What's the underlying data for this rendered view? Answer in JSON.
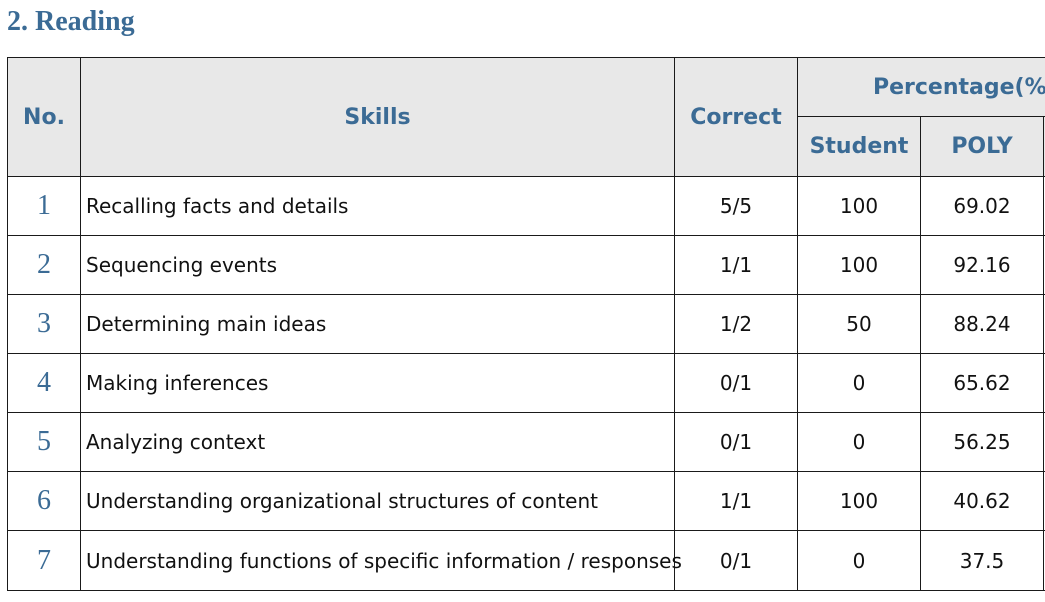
{
  "section": {
    "title": "2. Reading"
  },
  "table": {
    "headers": {
      "no": "No.",
      "skills": "Skills",
      "correct": "Correct",
      "percentage": "Percentage(%",
      "student": "Student",
      "poly": "POLY"
    },
    "rows": [
      {
        "no": "1",
        "skill": "Recalling facts and details",
        "correct": "5/5",
        "student": "100",
        "poly": "69.02"
      },
      {
        "no": "2",
        "skill": "Sequencing events",
        "correct": "1/1",
        "student": "100",
        "poly": "92.16"
      },
      {
        "no": "3",
        "skill": "Determining main ideas",
        "correct": "1/2",
        "student": "50",
        "poly": "88.24"
      },
      {
        "no": "4",
        "skill": "Making inferences",
        "correct": "0/1",
        "student": "0",
        "poly": "65.62"
      },
      {
        "no": "5",
        "skill": "Analyzing context",
        "correct": "0/1",
        "student": "0",
        "poly": "56.25"
      },
      {
        "no": "6",
        "skill": "Understanding organizational structures of content",
        "correct": "1/1",
        "student": "100",
        "poly": "40.62"
      },
      {
        "no": "7",
        "skill": "Understanding functions of specific information / responses",
        "correct": "0/1",
        "student": "0",
        "poly": "37.5"
      }
    ]
  }
}
